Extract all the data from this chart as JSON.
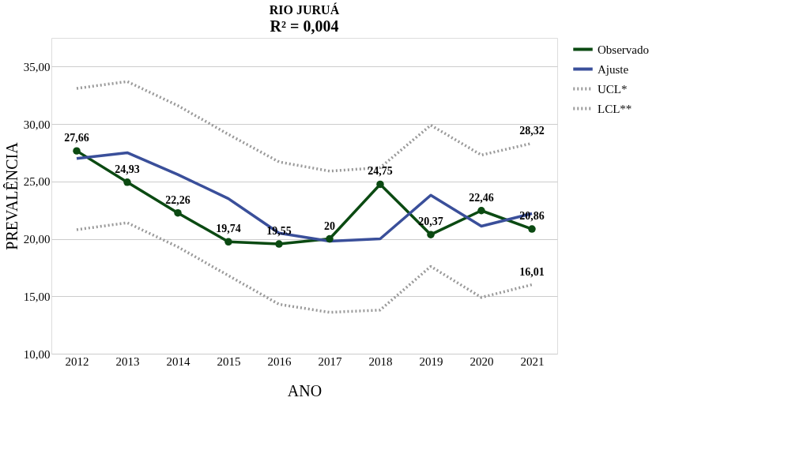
{
  "chart_data": {
    "type": "line",
    "title": "RIO JURUÁ",
    "subtitle": "R² = 0,004",
    "xlabel": "ANO",
    "ylabel": "PREVALÊNCIA",
    "categories": [
      "2012",
      "2013",
      "2014",
      "2015",
      "2016",
      "2017",
      "2018",
      "2019",
      "2020",
      "2021"
    ],
    "series": [
      {
        "name": "Observado",
        "color": "#0b4a12",
        "marker": "circle",
        "line_style": "solid",
        "values": [
          27.66,
          24.93,
          22.26,
          19.74,
          19.55,
          20,
          24.75,
          20.37,
          22.46,
          20.86
        ],
        "value_labels": [
          "27,66",
          "24,93",
          "22,26",
          "19,74",
          "19,55",
          "20",
          "24,75",
          "20,37",
          "22,46",
          "20,86"
        ]
      },
      {
        "name": "Ajuste",
        "color": "#3a4f9a",
        "marker": "none",
        "line_style": "solid",
        "values": [
          27.0,
          27.5,
          25.6,
          23.5,
          20.5,
          19.8,
          20.0,
          23.8,
          21.1,
          22.2
        ]
      },
      {
        "name": "UCL*",
        "color": "#9a9a9a",
        "marker": "none",
        "line_style": "dotted",
        "values": [
          33.1,
          33.7,
          31.6,
          29.1,
          26.7,
          25.9,
          26.2,
          29.9,
          27.3,
          28.32
        ],
        "value_labels": [
          null,
          null,
          null,
          null,
          null,
          null,
          null,
          null,
          null,
          "28,32"
        ]
      },
      {
        "name": "LCL**",
        "color": "#9a9a9a",
        "marker": "none",
        "line_style": "dotted",
        "values": [
          20.8,
          21.4,
          19.3,
          16.8,
          14.3,
          13.6,
          13.8,
          17.6,
          14.9,
          16.01
        ],
        "value_labels": [
          null,
          null,
          null,
          null,
          null,
          null,
          null,
          null,
          null,
          "16,01"
        ]
      }
    ],
    "ylim": [
      10,
      37.5
    ],
    "yticks": [
      {
        "value": 10,
        "label": "10,00"
      },
      {
        "value": 15,
        "label": "15,00"
      },
      {
        "value": 20,
        "label": "20,00"
      },
      {
        "value": 25,
        "label": "25,00"
      },
      {
        "value": 30,
        "label": "30,00"
      },
      {
        "value": 35,
        "label": "35,00"
      }
    ],
    "grid": "y",
    "legend": "top right"
  }
}
